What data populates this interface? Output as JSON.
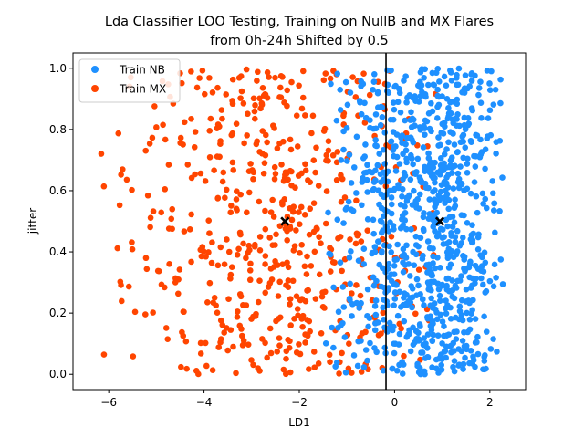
{
  "chart_data": {
    "type": "scatter",
    "title_line1": "Lda Classifier LOO Testing, Training on NullB and MX Flares",
    "title_line2": "from 0h-24h Shifted by 0.5",
    "xlabel": "LD1",
    "ylabel": "jitter",
    "xlim": [
      -6.75,
      2.75
    ],
    "ylim": [
      -0.05,
      1.05
    ],
    "xticks": [
      -6,
      -4,
      -2,
      0,
      2
    ],
    "xtick_labels": [
      "−6",
      "−4",
      "−2",
      "0",
      "2"
    ],
    "yticks": [
      0.0,
      0.2,
      0.4,
      0.6,
      0.8,
      1.0
    ],
    "ytick_labels": [
      "0.0",
      "0.2",
      "0.4",
      "0.6",
      "0.8",
      "1.0"
    ],
    "decision_boundary_x": -0.18,
    "legend_position": "top-left",
    "centroids": [
      {
        "x": -2.3,
        "y": 0.5
      },
      {
        "x": 0.95,
        "y": 0.5
      }
    ],
    "series": [
      {
        "name": "Train NB",
        "color": "#1e90ff",
        "x_range": [
          -1.6,
          2.3
        ],
        "peak": 1.2,
        "count": 900
      },
      {
        "name": "Train MX",
        "color": "#ff4500",
        "x_range": [
          -6.35,
          1.0
        ],
        "peak": -2.4,
        "count": 560
      }
    ]
  }
}
